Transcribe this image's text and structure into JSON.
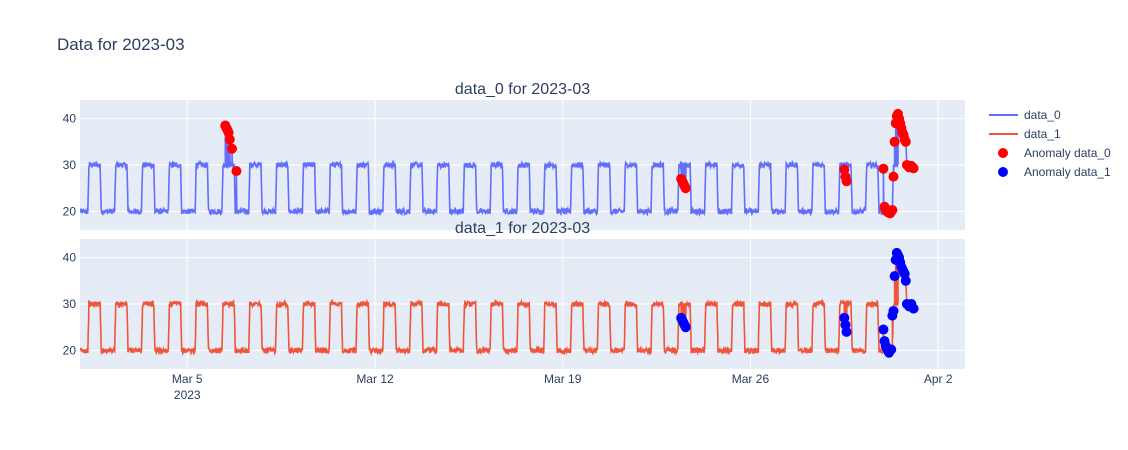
{
  "title": "Data for 2023-03",
  "chart_data": {
    "type": "line",
    "x_range": [
      "2023-03-01T00:00",
      "2023-04-03T00:00"
    ],
    "x_ticks": [
      {
        "date": "2023-03-05",
        "label": "Mar 5",
        "sublabel": "2023"
      },
      {
        "date": "2023-03-12",
        "label": "Mar 12",
        "sublabel": ""
      },
      {
        "date": "2023-03-19",
        "label": "Mar 19",
        "sublabel": ""
      },
      {
        "date": "2023-03-26",
        "label": "Mar 26",
        "sublabel": ""
      },
      {
        "date": "2023-04-02",
        "label": "Apr 2",
        "sublabel": ""
      }
    ],
    "y_range": [
      16,
      44
    ],
    "y_ticks": [
      20,
      30,
      40
    ],
    "grid": true,
    "legend_position": "right",
    "pattern": {
      "description_values": "daily cycle: low ~20 overnight, high ~30 during day",
      "low": 20,
      "high": 30,
      "noise": 0.6,
      "start": "2023-03-01T00:00",
      "end": "2023-03-31T12:00"
    },
    "panels": [
      {
        "subtitle": "data_0 for 2023-03",
        "series_name": "data_0",
        "line_color": "#636efa",
        "anomaly_name": "Anomaly data_0",
        "anomaly_color": "#ff0000",
        "anomalies": [
          {
            "x": "2023-03-06T10:00",
            "y": 38.5
          },
          {
            "x": "2023-03-06T11:00",
            "y": 38.0
          },
          {
            "x": "2023-03-06T12:00",
            "y": 37.5
          },
          {
            "x": "2023-03-06T13:00",
            "y": 37.0
          },
          {
            "x": "2023-03-06T14:00",
            "y": 35.5
          },
          {
            "x": "2023-03-06T16:00",
            "y": 33.5
          },
          {
            "x": "2023-03-06T20:00",
            "y": 28.7
          },
          {
            "x": "2023-03-23T10:00",
            "y": 27.0
          },
          {
            "x": "2023-03-23T11:00",
            "y": 26.5
          },
          {
            "x": "2023-03-23T12:00",
            "y": 26.0
          },
          {
            "x": "2023-03-23T13:00",
            "y": 25.5
          },
          {
            "x": "2023-03-23T14:00",
            "y": 25.0
          },
          {
            "x": "2023-03-29T12:00",
            "y": 29.0
          },
          {
            "x": "2023-03-29T13:00",
            "y": 27.5
          },
          {
            "x": "2023-03-29T14:00",
            "y": 26.5
          },
          {
            "x": "2023-03-30T23:00",
            "y": 29.2
          },
          {
            "x": "2023-03-31T00:00",
            "y": 21.0
          },
          {
            "x": "2023-03-31T01:00",
            "y": 20.5
          },
          {
            "x": "2023-03-31T02:00",
            "y": 20.0
          },
          {
            "x": "2023-03-31T03:00",
            "y": 19.8
          },
          {
            "x": "2023-03-31T04:00",
            "y": 20.2
          },
          {
            "x": "2023-03-31T05:00",
            "y": 19.6
          },
          {
            "x": "2023-03-31T06:00",
            "y": 20.0
          },
          {
            "x": "2023-03-31T07:00",
            "y": 20.3
          },
          {
            "x": "2023-03-31T08:00",
            "y": 27.5
          },
          {
            "x": "2023-03-31T09:00",
            "y": 35.0
          },
          {
            "x": "2023-03-31T10:00",
            "y": 39.0
          },
          {
            "x": "2023-03-31T11:00",
            "y": 40.5
          },
          {
            "x": "2023-03-31T12:00",
            "y": 41.0
          },
          {
            "x": "2023-03-31T13:00",
            "y": 40.0
          },
          {
            "x": "2023-03-31T14:00",
            "y": 39.0
          },
          {
            "x": "2023-03-31T15:00",
            "y": 38.0
          },
          {
            "x": "2023-03-31T16:00",
            "y": 37.0
          },
          {
            "x": "2023-03-31T17:00",
            "y": 36.5
          },
          {
            "x": "2023-03-31T18:00",
            "y": 35.5
          },
          {
            "x": "2023-03-31T19:00",
            "y": 35.0
          },
          {
            "x": "2023-03-31T20:00",
            "y": 30.0
          },
          {
            "x": "2023-03-31T22:00",
            "y": 29.5
          },
          {
            "x": "2023-04-01T00:00",
            "y": 29.8
          },
          {
            "x": "2023-04-01T02:00",
            "y": 29.3
          }
        ]
      },
      {
        "subtitle": "data_1 for 2023-03",
        "series_name": "data_1",
        "line_color": "#ef553b",
        "anomaly_name": "Anomaly data_1",
        "anomaly_color": "#0000ff",
        "anomalies": [
          {
            "x": "2023-03-23T10:00",
            "y": 27.0
          },
          {
            "x": "2023-03-23T11:00",
            "y": 26.5
          },
          {
            "x": "2023-03-23T12:00",
            "y": 26.0
          },
          {
            "x": "2023-03-23T13:00",
            "y": 25.5
          },
          {
            "x": "2023-03-23T14:00",
            "y": 25.0
          },
          {
            "x": "2023-03-29T12:00",
            "y": 27.0
          },
          {
            "x": "2023-03-29T13:00",
            "y": 25.5
          },
          {
            "x": "2023-03-29T14:00",
            "y": 24.0
          },
          {
            "x": "2023-03-30T23:00",
            "y": 24.5
          },
          {
            "x": "2023-03-31T00:00",
            "y": 22.0
          },
          {
            "x": "2023-03-31T01:00",
            "y": 21.0
          },
          {
            "x": "2023-03-31T02:00",
            "y": 20.5
          },
          {
            "x": "2023-03-31T03:00",
            "y": 20.0
          },
          {
            "x": "2023-03-31T04:00",
            "y": 19.5
          },
          {
            "x": "2023-03-31T05:00",
            "y": 20.0
          },
          {
            "x": "2023-03-31T06:00",
            "y": 20.2
          },
          {
            "x": "2023-03-31T07:00",
            "y": 27.5
          },
          {
            "x": "2023-03-31T08:00",
            "y": 28.5
          },
          {
            "x": "2023-03-31T09:00",
            "y": 36.0
          },
          {
            "x": "2023-03-31T10:00",
            "y": 39.5
          },
          {
            "x": "2023-03-31T11:00",
            "y": 41.0
          },
          {
            "x": "2023-03-31T12:00",
            "y": 40.5
          },
          {
            "x": "2023-03-31T13:00",
            "y": 40.0
          },
          {
            "x": "2023-03-31T14:00",
            "y": 39.0
          },
          {
            "x": "2023-03-31T15:00",
            "y": 38.0
          },
          {
            "x": "2023-03-31T16:00",
            "y": 37.5
          },
          {
            "x": "2023-03-31T17:00",
            "y": 37.0
          },
          {
            "x": "2023-03-31T18:00",
            "y": 36.5
          },
          {
            "x": "2023-03-31T19:00",
            "y": 35.0
          },
          {
            "x": "2023-03-31T20:00",
            "y": 30.0
          },
          {
            "x": "2023-03-31T22:00",
            "y": 29.5
          },
          {
            "x": "2023-04-01T00:00",
            "y": 30.0
          },
          {
            "x": "2023-04-01T02:00",
            "y": 29.0
          }
        ]
      }
    ],
    "legend": [
      {
        "label": "data_0",
        "kind": "line",
        "color": "#636efa"
      },
      {
        "label": "data_1",
        "kind": "line",
        "color": "#ef553b"
      },
      {
        "label": "Anomaly data_0",
        "kind": "marker",
        "color": "#ff0000"
      },
      {
        "label": "Anomaly data_1",
        "kind": "marker",
        "color": "#0000ff"
      }
    ]
  }
}
